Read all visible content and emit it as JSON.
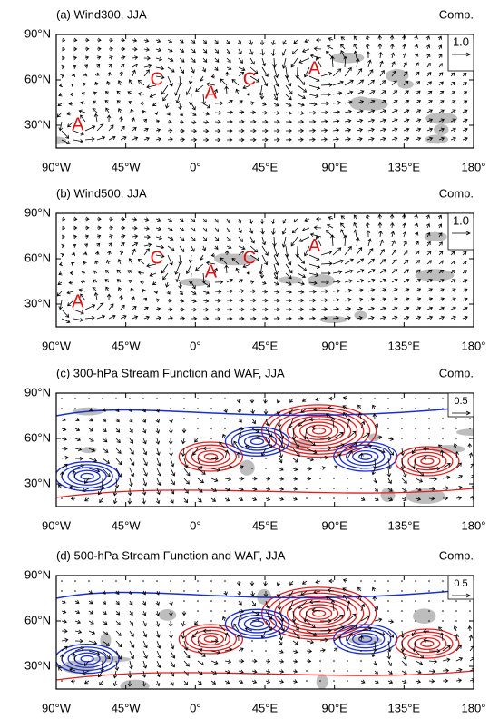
{
  "figure": {
    "panels": [
      {
        "title": "(a) Wind300, JJA",
        "label": "Comp.",
        "reference_vector": "1.0",
        "annotations": [
          "C",
          "A",
          "C",
          "A",
          "A"
        ],
        "xlim": [
          -90,
          180
        ],
        "ylim": [
          15,
          90
        ],
        "xticks": [
          {
            "value": -90,
            "label": "90°W"
          },
          {
            "value": -45,
            "label": "45°W"
          },
          {
            "value": 0,
            "label": "0°"
          },
          {
            "value": 45,
            "label": "45°E"
          },
          {
            "value": 90,
            "label": "90°E"
          },
          {
            "value": 135,
            "label": "135°E"
          },
          {
            "value": 180,
            "label": "180°"
          }
        ],
        "yticks": [
          {
            "value": 30,
            "label": "30°N"
          },
          {
            "value": 60,
            "label": "60°N"
          },
          {
            "value": 90,
            "label": "90°N"
          }
        ]
      },
      {
        "title": "(b) Wind500, JJA",
        "label": "Comp.",
        "reference_vector": "1.0",
        "annotations": [
          "C",
          "A",
          "C",
          "A",
          "A"
        ],
        "xlim": [
          -90,
          180
        ],
        "ylim": [
          15,
          90
        ],
        "xticks": [
          {
            "value": -90,
            "label": "90°W"
          },
          {
            "value": -45,
            "label": "45°W"
          },
          {
            "value": 0,
            "label": "0°"
          },
          {
            "value": 45,
            "label": "45°E"
          },
          {
            "value": 90,
            "label": "90°E"
          },
          {
            "value": 135,
            "label": "135°E"
          },
          {
            "value": 180,
            "label": "180°"
          }
        ],
        "yticks": [
          {
            "value": 30,
            "label": "30°N"
          },
          {
            "value": 60,
            "label": "60°N"
          },
          {
            "value": 90,
            "label": "90°N"
          }
        ]
      },
      {
        "title": "(c) 300-hPa Stream Function and WAF, JJA",
        "label": "Comp.",
        "reference_vector": "0.5",
        "annotations": [],
        "xlim": [
          -90,
          180
        ],
        "ylim": [
          15,
          90
        ],
        "xticks": [
          {
            "value": -90,
            "label": "90°W"
          },
          {
            "value": -45,
            "label": "45°W"
          },
          {
            "value": 0,
            "label": "0°"
          },
          {
            "value": 45,
            "label": "45°E"
          },
          {
            "value": 90,
            "label": "90°E"
          },
          {
            "value": 135,
            "label": "135°E"
          },
          {
            "value": 180,
            "label": "180°"
          }
        ],
        "yticks": [
          {
            "value": 30,
            "label": "30°N"
          },
          {
            "value": 60,
            "label": "60°N"
          },
          {
            "value": 90,
            "label": "90°N"
          }
        ]
      },
      {
        "title": "(d) 500-hPa Stream Function and WAF, JJA",
        "label": "Comp.",
        "reference_vector": "0.5",
        "annotations": [],
        "xlim": [
          -90,
          180
        ],
        "ylim": [
          15,
          90
        ],
        "xticks": [
          {
            "value": -90,
            "label": "90°W"
          },
          {
            "value": -45,
            "label": "45°W"
          },
          {
            "value": 0,
            "label": "0°"
          },
          {
            "value": 45,
            "label": "45°E"
          },
          {
            "value": 90,
            "label": "90°E"
          },
          {
            "value": 135,
            "label": "135°E"
          },
          {
            "value": 180,
            "label": "180°"
          }
        ],
        "yticks": [
          {
            "value": 30,
            "label": "30°N"
          },
          {
            "value": 60,
            "label": "60°N"
          },
          {
            "value": 90,
            "label": "90°N"
          }
        ]
      }
    ]
  }
}
